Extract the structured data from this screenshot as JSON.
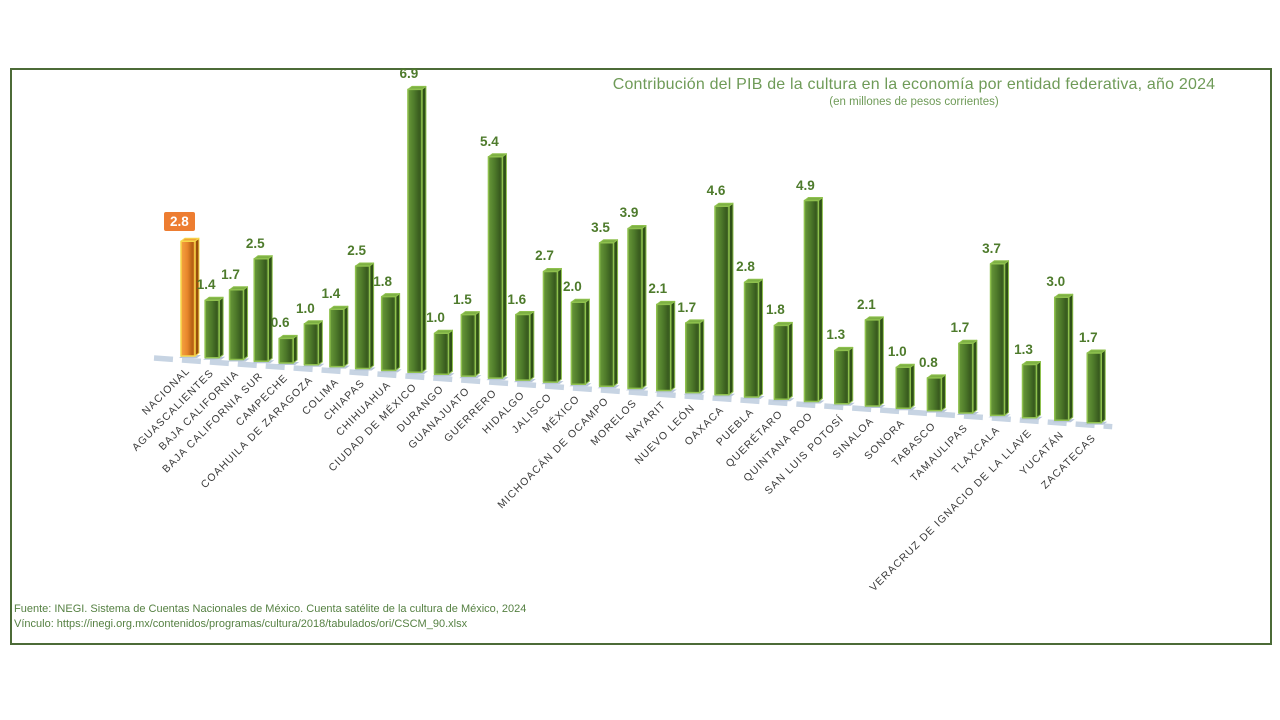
{
  "title": "Contribución del PIB de la cultura en la economía por entidad federativa, año 2024",
  "subtitle": "(en millones de pesos corrientes)",
  "footer": {
    "line1": "Fuente: INEGI. Sistema de Cuentas Nacionales de México. Cuenta satélite de la cultura de México, 2024",
    "line2": "Vínculo: https://inegi.org.mx/contenidos/programas/cultura/2018/tabulados/ori/CSCM_90.xlsx"
  },
  "colors": {
    "title_green": "#6F9B58",
    "footer_green": "#568143",
    "border_green": "#4C6B37",
    "value_label_green": "#4E7B2C",
    "category_label": "#3B3B3B",
    "floor_dash": "#C7D4E3",
    "base_nub": "#B7C6D8",
    "green_front_light": "#689839",
    "green_front": "#4E7A2A",
    "green_front_dark": "#385A1E",
    "green_edge": "#8FC14E",
    "green_side": "#2F5018",
    "green_top": "#7DB044",
    "orange_front_light": "#F5A342",
    "orange_front": "#E8872B",
    "orange_front_dark": "#B35F13",
    "orange_edge": "#F7D84A",
    "orange_side": "#9A4D0C",
    "orange_top": "#F0A838",
    "national_label_bg": "#ED7D31",
    "national_label_text": "#FFFFFF"
  },
  "chart_data": {
    "type": "bar",
    "style": "3d-column-perspective",
    "title": "Contribución del PIB de la cultura en la economía por entidad federativa, año 2024",
    "subtitle": "(en millones de pesos corrientes)",
    "unit": "millones de pesos corrientes",
    "legend": "none",
    "grid": false,
    "highlight_index": 0,
    "highlight_style": "orange-bar-with-boxed-label",
    "value_labels": "above-bars, one decimal",
    "categories": [
      "NACIONAL",
      "AGUASCALIENTES",
      "BAJA CALIFORNIA",
      "BAJA CALIFORNIA SUR",
      "CAMPECHE",
      "COAHUILA DE ZARAGOZA",
      "COLIMA",
      "CHIAPAS",
      "CHIHUAHUA",
      "CIUDAD DE MÉXICO",
      "DURANGO",
      "GUANAJUATO",
      "GUERRERO",
      "HIDALGO",
      "JALISCO",
      "MÉXICO",
      "MICHOACÁN DE OCAMPO",
      "MORELOS",
      "NAYARIT",
      "NUEVO LEÓN",
      "OAXACA",
      "PUEBLA",
      "QUERÉTARO",
      "QUINTANA ROO",
      "SAN LUIS POTOSÍ",
      "SINALOA",
      "SONORA",
      "TABASCO",
      "TAMAULIPAS",
      "TLAXCALA",
      "VERACRUZ DE IGNACIO DE LA LLAVE",
      "YUCATÁN",
      "ZACATECAS"
    ],
    "values": [
      2.8,
      1.4,
      1.7,
      2.5,
      0.6,
      1.0,
      1.4,
      2.5,
      1.8,
      6.9,
      1.0,
      1.5,
      5.4,
      1.6,
      2.7,
      2.0,
      3.5,
      3.9,
      2.1,
      1.7,
      4.6,
      2.8,
      1.8,
      4.9,
      1.3,
      2.1,
      1.0,
      0.8,
      1.7,
      3.7,
      1.3,
      3.0,
      1.7
    ]
  }
}
